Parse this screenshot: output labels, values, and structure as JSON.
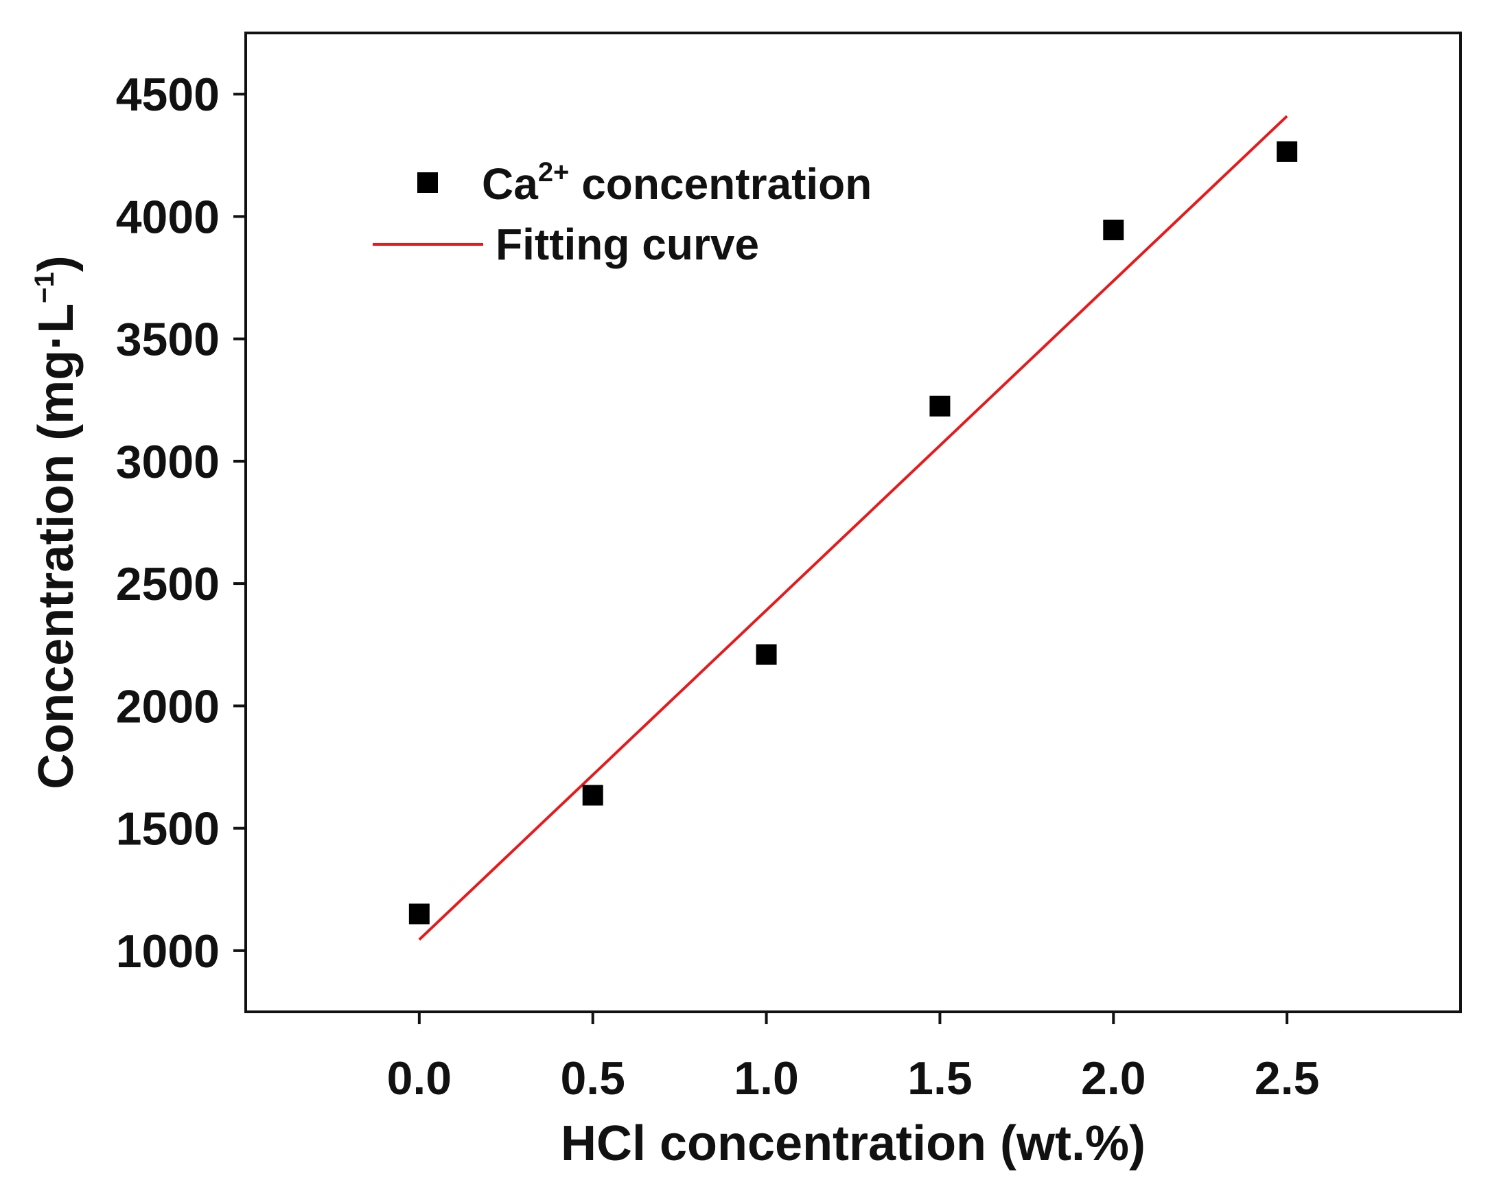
{
  "chart_data": {
    "type": "scatter",
    "title": "",
    "xlabel": "HCl concentration (wt.%)",
    "ylabel": {
      "prefix": "Concentration (mg·L",
      "superscript": "−1",
      "suffix": ")"
    },
    "xlim": [
      -0.5,
      3.0
    ],
    "ylim": [
      750,
      4750
    ],
    "x_ticks": [
      0.0,
      0.5,
      1.0,
      1.5,
      2.0,
      2.5
    ],
    "x_tick_labels": [
      "0.0",
      "0.5",
      "1.0",
      "1.5",
      "2.0",
      "2.5"
    ],
    "y_ticks": [
      1000,
      1500,
      2000,
      2500,
      3000,
      3500,
      4000,
      4500
    ],
    "y_tick_labels": [
      "1000",
      "1500",
      "2000",
      "2500",
      "3000",
      "3500",
      "4000",
      "4500"
    ],
    "grid": false,
    "legend_position": "top-left",
    "series": [
      {
        "name": "Ca2+ concentration",
        "label_base": "Ca",
        "label_superscript": "2+",
        "label_suffix": " concentration",
        "kind": "scatter",
        "marker": "square",
        "color": "#000000",
        "x": [
          0.0,
          0.5,
          1.0,
          1.5,
          2.0,
          2.5
        ],
        "y": [
          1150,
          1635,
          2210,
          3225,
          3945,
          4265
        ]
      },
      {
        "name": "Fitting curve",
        "kind": "line",
        "color": "#e8191b",
        "x": [
          0.0,
          2.5
        ],
        "y": [
          1045,
          4410
        ]
      }
    ]
  }
}
